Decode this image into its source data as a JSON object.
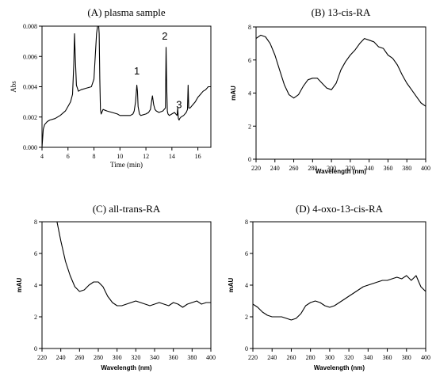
{
  "chart_data": [
    {
      "type": "line",
      "title": "(A) plasma sample",
      "xlabel": "Time (min)",
      "ylabel": "Abs",
      "xlim": [
        4,
        17
      ],
      "ylim": [
        0,
        0.008
      ],
      "xticks": [
        4,
        6,
        8,
        10,
        12,
        14,
        16
      ],
      "xtick_labels": [
        "4",
        "6",
        "8",
        "10",
        "12",
        "14",
        "16"
      ],
      "yticks": [
        0,
        0.002,
        0.004,
        0.006,
        0.008
      ],
      "ytick_labels": [
        "0.000",
        "0.002",
        "0.004",
        "0.006",
        "0.008"
      ],
      "peak_labels": [
        {
          "text": "1",
          "x": 11.3,
          "y": 0.0048
        },
        {
          "text": "2",
          "x": 13.45,
          "y": 0.0071
        },
        {
          "text": "3",
          "x": 14.55,
          "y": 0.0026
        }
      ],
      "series": [
        {
          "x": [
            4.0,
            4.1,
            4.2,
            4.4,
            4.6,
            5.0,
            5.4,
            5.8,
            6.0,
            6.2,
            6.35,
            6.45,
            6.5,
            6.55,
            6.65,
            6.8,
            7.0,
            7.4,
            7.8,
            8.0,
            8.2,
            8.3,
            8.35,
            8.4,
            8.45,
            8.5,
            8.55,
            8.6,
            8.7,
            9.0,
            9.4,
            9.8,
            10.0,
            10.4,
            10.8,
            11.0,
            11.1,
            11.2,
            11.3,
            11.35,
            11.4,
            11.5,
            11.6,
            12.0,
            12.2,
            12.35,
            12.45,
            12.5,
            12.6,
            12.7,
            12.8,
            13.0,
            13.3,
            13.5,
            13.55,
            13.6,
            13.65,
            13.7,
            13.8,
            14.0,
            14.2,
            14.4,
            14.45,
            14.5,
            14.55,
            14.6,
            14.7,
            14.9,
            15.1,
            15.2,
            15.25,
            15.3,
            15.4,
            15.6,
            15.8,
            16.0,
            16.2,
            16.4,
            16.6,
            16.8,
            17.0
          ],
          "y": [
            0.0,
            0.0012,
            0.0015,
            0.0017,
            0.0018,
            0.0019,
            0.0021,
            0.0024,
            0.0027,
            0.003,
            0.0035,
            0.0055,
            0.0075,
            0.0062,
            0.0041,
            0.0037,
            0.0038,
            0.0039,
            0.004,
            0.0045,
            0.0075,
            0.0082,
            0.0082,
            0.0075,
            0.0045,
            0.0025,
            0.0022,
            0.0023,
            0.0025,
            0.0024,
            0.0023,
            0.0022,
            0.0021,
            0.0021,
            0.0021,
            0.0022,
            0.0024,
            0.003,
            0.0041,
            0.0037,
            0.0027,
            0.0022,
            0.0021,
            0.0022,
            0.0023,
            0.0025,
            0.0031,
            0.0034,
            0.0028,
            0.0025,
            0.0024,
            0.0023,
            0.0024,
            0.0026,
            0.0066,
            0.004,
            0.0024,
            0.0022,
            0.0021,
            0.0022,
            0.0023,
            0.0021,
            0.0026,
            0.0019,
            0.0018,
            0.0019,
            0.002,
            0.0021,
            0.0023,
            0.0025,
            0.0041,
            0.0026,
            0.0026,
            0.0028,
            0.003,
            0.0033,
            0.0035,
            0.0037,
            0.0038,
            0.004,
            0.004
          ]
        }
      ]
    },
    {
      "type": "line",
      "title": "(B) 13-cis-RA",
      "xlabel": "Wavelength (nm)",
      "ylabel": "mAU",
      "xlim": [
        220,
        400
      ],
      "ylim": [
        0,
        8
      ],
      "xticks": [
        220,
        240,
        260,
        280,
        300,
        320,
        340,
        360,
        380,
        400
      ],
      "xtick_labels": [
        "220",
        "240",
        "260",
        "280",
        "300",
        "320",
        "340",
        "360",
        "380",
        "400"
      ],
      "yticks": [
        0,
        2,
        4,
        6,
        8
      ],
      "ytick_labels": [
        "0",
        "2",
        "4",
        "6",
        "8"
      ],
      "series": [
        {
          "x": [
            220,
            225,
            230,
            235,
            240,
            245,
            250,
            255,
            260,
            265,
            270,
            275,
            280,
            285,
            290,
            295,
            300,
            305,
            310,
            315,
            320,
            325,
            330,
            335,
            340,
            345,
            350,
            355,
            360,
            365,
            370,
            375,
            380,
            385,
            390,
            395,
            400
          ],
          "y": [
            7.3,
            7.5,
            7.4,
            7.0,
            6.3,
            5.4,
            4.5,
            3.9,
            3.7,
            3.9,
            4.4,
            4.8,
            4.9,
            4.9,
            4.6,
            4.3,
            4.2,
            4.6,
            5.4,
            5.9,
            6.3,
            6.6,
            7.0,
            7.3,
            7.2,
            7.1,
            6.8,
            6.7,
            6.3,
            6.1,
            5.7,
            5.1,
            4.6,
            4.2,
            3.8,
            3.4,
            3.2
          ]
        }
      ]
    },
    {
      "type": "line",
      "title": "(C) all-trans-RA",
      "xlabel": "Wavelength (nm)",
      "ylabel": "mAU",
      "xlim": [
        220,
        400
      ],
      "ylim": [
        0,
        8
      ],
      "xticks": [
        220,
        240,
        260,
        280,
        300,
        320,
        340,
        360,
        380,
        400
      ],
      "xtick_labels": [
        "220",
        "240",
        "260",
        "280",
        "300",
        "320",
        "340",
        "360",
        "380",
        "400"
      ],
      "yticks": [
        0,
        2,
        4,
        6,
        8
      ],
      "ytick_labels": [
        "0",
        "2",
        "4",
        "6",
        "8"
      ],
      "series": [
        {
          "x": [
            236,
            240,
            245,
            250,
            255,
            260,
            265,
            270,
            275,
            280,
            285,
            290,
            295,
            300,
            305,
            310,
            315,
            320,
            325,
            330,
            335,
            340,
            345,
            350,
            355,
            360,
            365,
            370,
            375,
            380,
            385,
            390,
            395,
            400
          ],
          "y": [
            8.0,
            6.8,
            5.5,
            4.6,
            3.9,
            3.6,
            3.7,
            4.0,
            4.2,
            4.2,
            3.9,
            3.3,
            2.9,
            2.7,
            2.7,
            2.8,
            2.9,
            3.0,
            2.9,
            2.8,
            2.7,
            2.8,
            2.9,
            2.8,
            2.7,
            2.9,
            2.8,
            2.6,
            2.8,
            2.9,
            3.0,
            2.8,
            2.9,
            2.9
          ]
        }
      ]
    },
    {
      "type": "line",
      "title": "(D) 4-oxo-13-cis-RA",
      "xlabel": "Wavelength (nm)",
      "ylabel": "mAU",
      "xlim": [
        220,
        400
      ],
      "ylim": [
        0,
        8
      ],
      "xticks": [
        220,
        240,
        260,
        280,
        300,
        320,
        340,
        360,
        380,
        400
      ],
      "xtick_labels": [
        "220",
        "240",
        "260",
        "280",
        "300",
        "320",
        "340",
        "360",
        "380",
        "400"
      ],
      "yticks": [
        0,
        2,
        4,
        6,
        8
      ],
      "ytick_labels": [
        "0",
        "2",
        "4",
        "6",
        "8"
      ],
      "series": [
        {
          "x": [
            220,
            225,
            230,
            235,
            240,
            245,
            250,
            255,
            260,
            265,
            270,
            275,
            280,
            285,
            290,
            295,
            300,
            305,
            310,
            315,
            320,
            325,
            330,
            335,
            340,
            345,
            350,
            355,
            360,
            365,
            370,
            375,
            380,
            385,
            390,
            395,
            400
          ],
          "y": [
            2.8,
            2.6,
            2.3,
            2.1,
            2.0,
            2.0,
            2.0,
            1.9,
            1.8,
            1.9,
            2.2,
            2.7,
            2.9,
            3.0,
            2.9,
            2.7,
            2.6,
            2.7,
            2.9,
            3.1,
            3.3,
            3.5,
            3.7,
            3.9,
            4.0,
            4.1,
            4.2,
            4.3,
            4.3,
            4.4,
            4.5,
            4.4,
            4.6,
            4.3,
            4.6,
            3.9,
            3.6
          ]
        }
      ]
    }
  ]
}
